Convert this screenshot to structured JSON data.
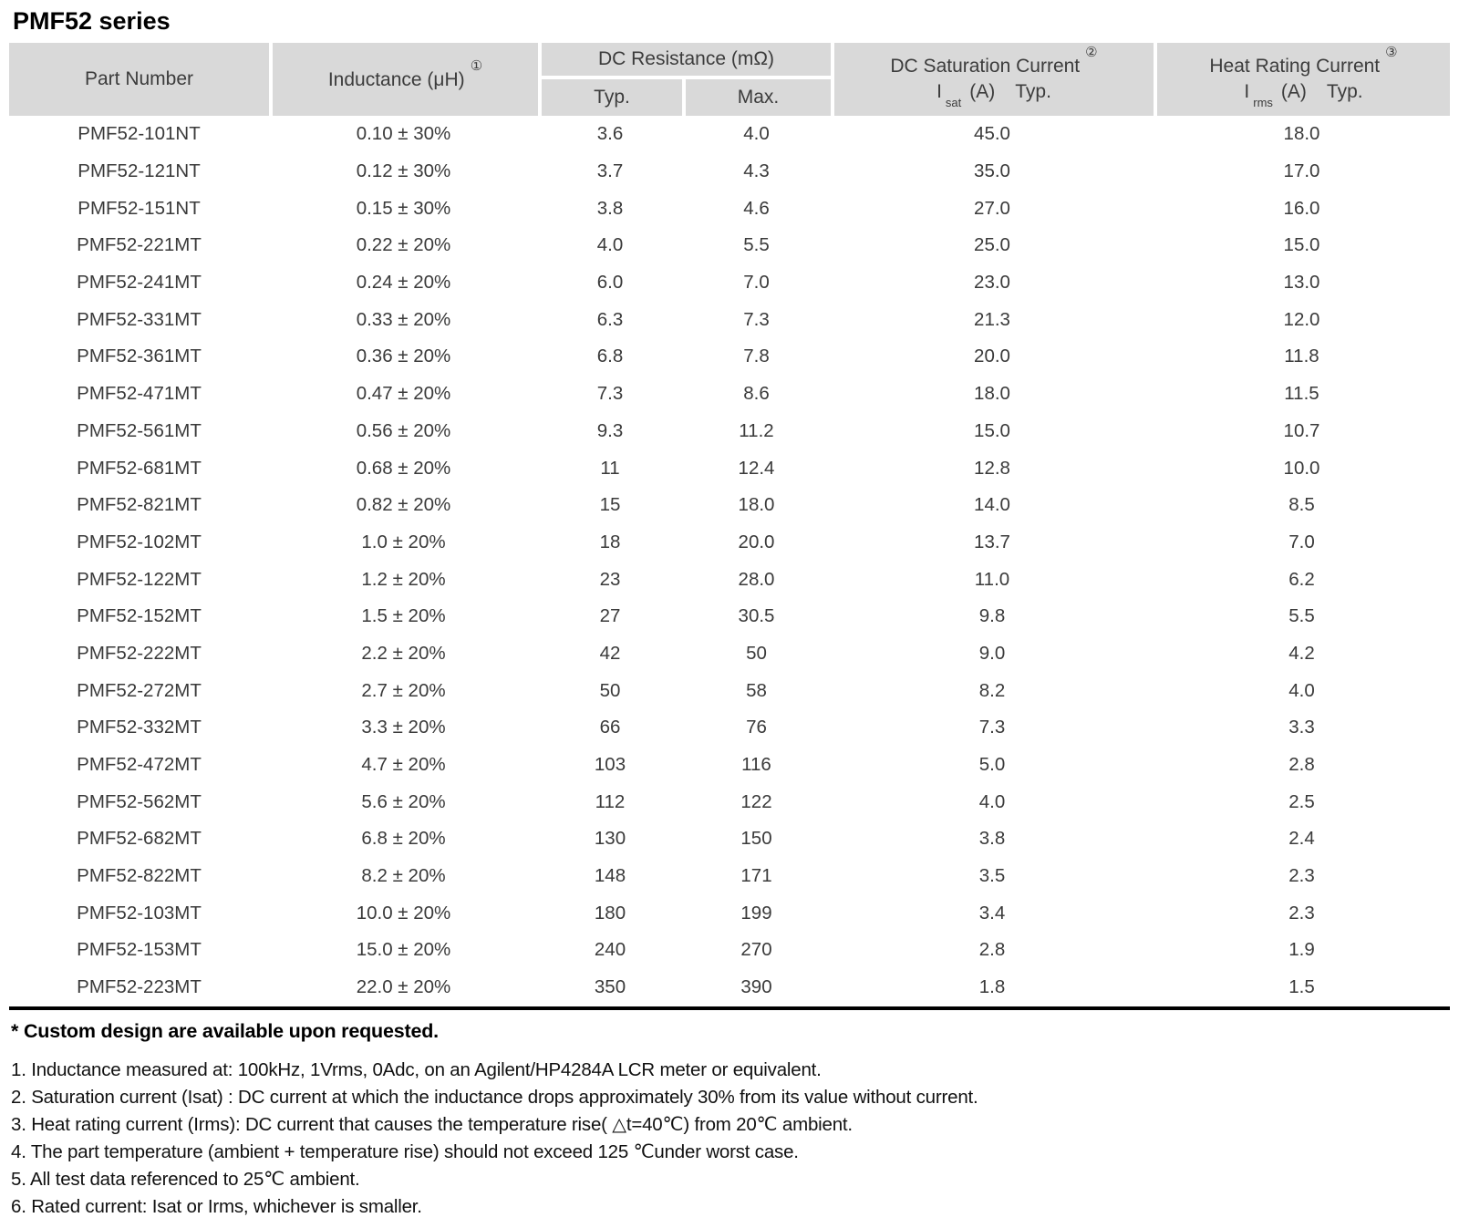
{
  "title": "PMF52 series",
  "colors": {
    "header_bg": "#d9d9d9",
    "rule": "#000000",
    "body_text": "#3a3a3a"
  },
  "table": {
    "headers": {
      "part": "Part Number",
      "inductance_label": "Inductance (μH)",
      "inductance_ref": "①",
      "dc_resistance_label": "DC Resistance (mΩ)",
      "typ": "Typ.",
      "max": "Max.",
      "saturation_label": "DC Saturation Current",
      "saturation_ref": "②",
      "saturation_symbol": "I",
      "saturation_sub": "sat",
      "saturation_unit": "(A)",
      "saturation_typ": "Typ.",
      "heat_label": "Heat Rating Current",
      "heat_ref": "③",
      "heat_symbol": "I",
      "heat_sub": "rms",
      "heat_unit": "(A)",
      "heat_typ": "Typ."
    },
    "rows": [
      {
        "part": "PMF52-101NT",
        "inductance": "0.10 ± 30%",
        "dcr_typ": "3.6",
        "dcr_max": "4.0",
        "isat": "45.0",
        "irms": "18.0"
      },
      {
        "part": "PMF52-121NT",
        "inductance": "0.12 ± 30%",
        "dcr_typ": "3.7",
        "dcr_max": "4.3",
        "isat": "35.0",
        "irms": "17.0"
      },
      {
        "part": "PMF52-151NT",
        "inductance": "0.15 ± 30%",
        "dcr_typ": "3.8",
        "dcr_max": "4.6",
        "isat": "27.0",
        "irms": "16.0"
      },
      {
        "part": "PMF52-221MT",
        "inductance": "0.22 ± 20%",
        "dcr_typ": "4.0",
        "dcr_max": "5.5",
        "isat": "25.0",
        "irms": "15.0"
      },
      {
        "part": "PMF52-241MT",
        "inductance": "0.24 ± 20%",
        "dcr_typ": "6.0",
        "dcr_max": "7.0",
        "isat": "23.0",
        "irms": "13.0"
      },
      {
        "part": "PMF52-331MT",
        "inductance": "0.33 ± 20%",
        "dcr_typ": "6.3",
        "dcr_max": "7.3",
        "isat": "21.3",
        "irms": "12.0"
      },
      {
        "part": "PMF52-361MT",
        "inductance": "0.36 ± 20%",
        "dcr_typ": "6.8",
        "dcr_max": "7.8",
        "isat": "20.0",
        "irms": "11.8"
      },
      {
        "part": "PMF52-471MT",
        "inductance": "0.47 ± 20%",
        "dcr_typ": "7.3",
        "dcr_max": "8.6",
        "isat": "18.0",
        "irms": "11.5"
      },
      {
        "part": "PMF52-561MT",
        "inductance": "0.56 ± 20%",
        "dcr_typ": "9.3",
        "dcr_max": "11.2",
        "isat": "15.0",
        "irms": "10.7"
      },
      {
        "part": "PMF52-681MT",
        "inductance": "0.68 ± 20%",
        "dcr_typ": "11",
        "dcr_max": "12.4",
        "isat": "12.8",
        "irms": "10.0"
      },
      {
        "part": "PMF52-821MT",
        "inductance": "0.82 ± 20%",
        "dcr_typ": "15",
        "dcr_max": "18.0",
        "isat": "14.0",
        "irms": "8.5"
      },
      {
        "part": "PMF52-102MT",
        "inductance": "1.0 ± 20%",
        "dcr_typ": "18",
        "dcr_max": "20.0",
        "isat": "13.7",
        "irms": "7.0"
      },
      {
        "part": "PMF52-122MT",
        "inductance": "1.2 ± 20%",
        "dcr_typ": "23",
        "dcr_max": "28.0",
        "isat": "11.0",
        "irms": "6.2"
      },
      {
        "part": "PMF52-152MT",
        "inductance": "1.5 ± 20%",
        "dcr_typ": "27",
        "dcr_max": "30.5",
        "isat": "9.8",
        "irms": "5.5"
      },
      {
        "part": "PMF52-222MT",
        "inductance": "2.2 ± 20%",
        "dcr_typ": "42",
        "dcr_max": "50",
        "isat": "9.0",
        "irms": "4.2"
      },
      {
        "part": "PMF52-272MT",
        "inductance": "2.7 ± 20%",
        "dcr_typ": "50",
        "dcr_max": "58",
        "isat": "8.2",
        "irms": "4.0"
      },
      {
        "part": "PMF52-332MT",
        "inductance": "3.3 ± 20%",
        "dcr_typ": "66",
        "dcr_max": "76",
        "isat": "7.3",
        "irms": "3.3"
      },
      {
        "part": "PMF52-472MT",
        "inductance": "4.7 ± 20%",
        "dcr_typ": "103",
        "dcr_max": "116",
        "isat": "5.0",
        "irms": "2.8"
      },
      {
        "part": "PMF52-562MT",
        "inductance": "5.6 ± 20%",
        "dcr_typ": "112",
        "dcr_max": "122",
        "isat": "4.0",
        "irms": "2.5"
      },
      {
        "part": "PMF52-682MT",
        "inductance": "6.8 ± 20%",
        "dcr_typ": "130",
        "dcr_max": "150",
        "isat": "3.8",
        "irms": "2.4"
      },
      {
        "part": "PMF52-822MT",
        "inductance": "8.2 ± 20%",
        "dcr_typ": "148",
        "dcr_max": "171",
        "isat": "3.5",
        "irms": "2.3"
      },
      {
        "part": "PMF52-103MT",
        "inductance": "10.0 ± 20%",
        "dcr_typ": "180",
        "dcr_max": "199",
        "isat": "3.4",
        "irms": "2.3"
      },
      {
        "part": "PMF52-153MT",
        "inductance": "15.0 ± 20%",
        "dcr_typ": "240",
        "dcr_max": "270",
        "isat": "2.8",
        "irms": "1.9"
      },
      {
        "part": "PMF52-223MT",
        "inductance": "22.0 ± 20%",
        "dcr_typ": "350",
        "dcr_max": "390",
        "isat": "1.8",
        "irms": "1.5"
      }
    ]
  },
  "footnotes": {
    "custom": "* Custom design are available upon requested.",
    "notes": [
      "1. Inductance measured at: 100kHz, 1Vrms, 0Adc, on an Agilent/HP4284A LCR meter or equivalent.",
      "2. Saturation current (Isat) : DC current at which the inductance drops approximately 30% from its value without current.",
      "3. Heat rating current (Irms): DC current that causes the temperature rise( △t=40℃) from 20℃ ambient.",
      "4. The part temperature (ambient + temperature rise) should not exceed 125 ℃under worst case.",
      "5. All test data referenced to 25℃ ambient.",
      "6. Rated current: Isat or Irms, whichever is smaller."
    ]
  }
}
